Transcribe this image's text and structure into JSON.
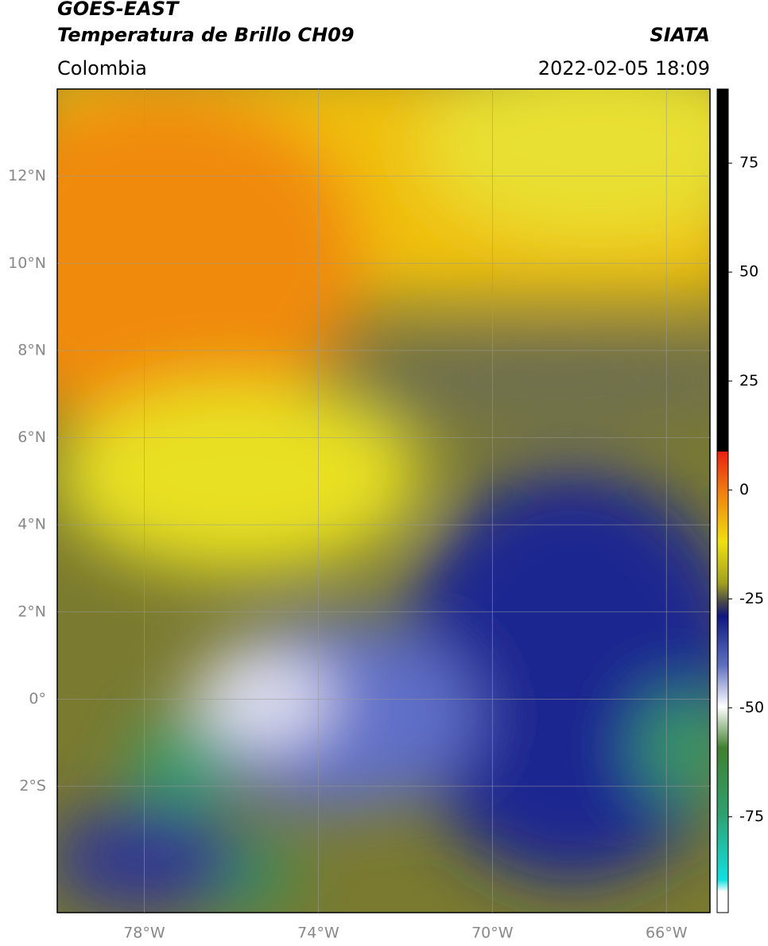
{
  "header": {
    "title": "GOES-EAST",
    "subtitle": "Temperatura de Brillo CH09",
    "source": "SIATA",
    "region": "Colombia",
    "datetime": "2022-02-05 18:09"
  },
  "map": {
    "lonlim": [
      -80,
      -65
    ],
    "latlim": [
      -4.9,
      14
    ],
    "lon_ticks": [
      {
        "value": -78,
        "label": "78°W"
      },
      {
        "value": -74,
        "label": "74°W"
      },
      {
        "value": -70,
        "label": "70°W"
      },
      {
        "value": -66,
        "label": "66°W"
      }
    ],
    "lat_ticks": [
      {
        "value": 12,
        "label": "12°N"
      },
      {
        "value": 10,
        "label": "10°N"
      },
      {
        "value": 8,
        "label": "8°N"
      },
      {
        "value": 6,
        "label": "6°N"
      },
      {
        "value": 4,
        "label": "4°N"
      },
      {
        "value": 2,
        "label": "2°N"
      },
      {
        "value": 0,
        "label": "0°"
      },
      {
        "value": -2,
        "label": "2°S"
      }
    ]
  },
  "colorbar": {
    "lim": [
      -97,
      92
    ],
    "ticks": [
      75,
      50,
      25,
      0,
      -25,
      -50,
      -75
    ]
  }
}
